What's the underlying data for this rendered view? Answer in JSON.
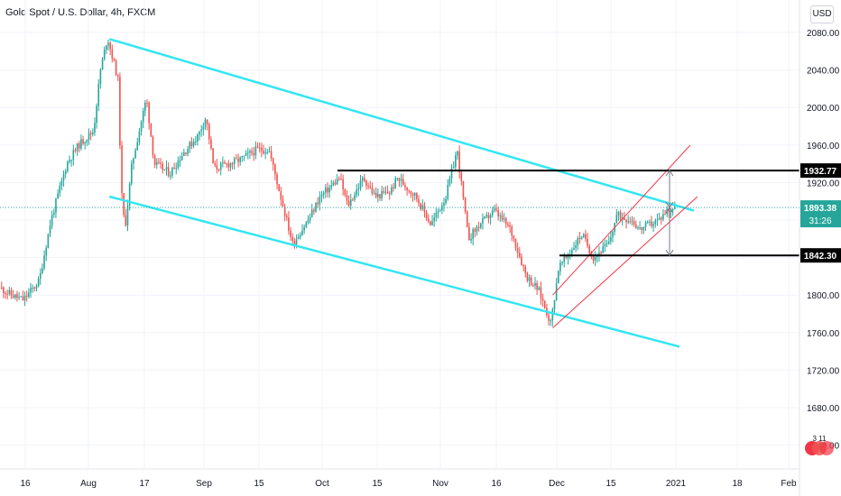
{
  "header": {
    "title": "Gold Spot / U.S. Dollar, 4h, FXCM",
    "currency_button": "USD"
  },
  "price_axis": {
    "ticks": [
      "2080.00",
      "2040.00",
      "2000.00",
      "1960.00",
      "1920.00",
      "1880.00",
      "1840.00",
      "1800.00",
      "1760.00",
      "1720.00",
      "1680.00",
      "1640.00"
    ]
  },
  "time_axis": {
    "labels": [
      "16",
      "Aug",
      "17",
      "Sep",
      "15",
      "Oct",
      "15",
      "Nov",
      "16",
      "Dec",
      "15",
      "2021",
      "18",
      "Feb"
    ]
  },
  "price_labels": {
    "resistance": "1932.77",
    "current": "1893.38",
    "countdown": "31:26",
    "support": "1842.30"
  },
  "badge": {
    "text": "3 11"
  },
  "colors": {
    "bull": "#26a69a",
    "bear": "#ef5350",
    "channel": "#33e6f2",
    "rising_channel": "#f23645",
    "hline": "#000000",
    "current_price": "#26a69a"
  },
  "chart_data": {
    "type": "candlestick",
    "symbol": "Gold Spot / U.S. Dollar",
    "interval": "4h",
    "source": "FXCM",
    "ylim": [
      1605,
      2100
    ],
    "y_ticks": [
      1640,
      1680,
      1720,
      1760,
      1800,
      1840,
      1880,
      1920,
      1960,
      2000,
      2040,
      2080
    ],
    "x_labels": [
      "16",
      "Aug",
      "17",
      "Sep",
      "15",
      "Oct",
      "15",
      "Nov",
      "16",
      "Dec",
      "15",
      "2021",
      "18",
      "Feb"
    ],
    "price_path": [
      [
        "Jul 10",
        1808
      ],
      [
        "Jul 13",
        1800
      ],
      [
        "Jul 16",
        1795
      ],
      [
        "Jul 20",
        1815
      ],
      [
        "Jul 23",
        1880
      ],
      [
        "Jul 27",
        1940
      ],
      [
        "Jul 30",
        1960
      ],
      [
        "Aug 3",
        1975
      ],
      [
        "Aug 5",
        2040
      ],
      [
        "Aug 7",
        2075
      ],
      [
        "Aug 10",
        2030
      ],
      [
        "Aug 11",
        1910
      ],
      [
        "Aug 12",
        1870
      ],
      [
        "Aug 14",
        1940
      ],
      [
        "Aug 18",
        2010
      ],
      [
        "Aug 20",
        1940
      ],
      [
        "Aug 24",
        1930
      ],
      [
        "Aug 27",
        1950
      ],
      [
        "Aug 31",
        1970
      ],
      [
        "Sep 2",
        1990
      ],
      [
        "Sep 4",
        1935
      ],
      [
        "Sep 8",
        1940
      ],
      [
        "Sep 11",
        1945
      ],
      [
        "Sep 15",
        1955
      ],
      [
        "Sep 18",
        1955
      ],
      [
        "Sep 21",
        1905
      ],
      [
        "Sep 24",
        1855
      ],
      [
        "Sep 28",
        1880
      ],
      [
        "Oct 1",
        1905
      ],
      [
        "Oct 6",
        1925
      ],
      [
        "Oct 8",
        1895
      ],
      [
        "Oct 12",
        1925
      ],
      [
        "Oct 15",
        1905
      ],
      [
        "Oct 19",
        1910
      ],
      [
        "Oct 21",
        1925
      ],
      [
        "Oct 26",
        1905
      ],
      [
        "Oct 30",
        1875
      ],
      [
        "Nov 3",
        1905
      ],
      [
        "Nov 6",
        1955
      ],
      [
        "Nov 9",
        1860
      ],
      [
        "Nov 12",
        1875
      ],
      [
        "Nov 16",
        1890
      ],
      [
        "Nov 20",
        1870
      ],
      [
        "Nov 24",
        1820
      ],
      [
        "Nov 27",
        1805
      ],
      [
        "Nov 30",
        1770
      ],
      [
        "Dec 2",
        1830
      ],
      [
        "Dec 4",
        1840
      ],
      [
        "Dec 8",
        1865
      ],
      [
        "Dec 11",
        1840
      ],
      [
        "Dec 15",
        1855
      ],
      [
        "Dec 17",
        1885
      ],
      [
        "Dec 21",
        1880
      ],
      [
        "Dec 23",
        1870
      ],
      [
        "Dec 28",
        1880
      ],
      [
        "Dec 30",
        1890
      ],
      [
        "Jan 1",
        1893.38
      ]
    ],
    "horizontal_lines": [
      {
        "price": 1932.77
      },
      {
        "price": 1842.3
      }
    ],
    "current_price": 1893.38,
    "countdown": "31:26",
    "trendlines": [
      {
        "name": "descending channel upper",
        "from": [
          "Aug 7",
          2073
        ],
        "to": [
          "Jan 6",
          1890
        ]
      },
      {
        "name": "descending channel lower",
        "from": [
          "Aug 7",
          1905
        ],
        "to": [
          "Jan 2",
          1745
        ]
      },
      {
        "name": "rising channel upper",
        "from": [
          "Nov 30",
          1800
        ],
        "to": [
          "Jan 5",
          1960
        ]
      },
      {
        "name": "rising channel lower",
        "from": [
          "Nov 30",
          1765
        ],
        "to": [
          "Jan 7",
          1905
        ]
      }
    ],
    "measure_arrows": [
      {
        "date": "Jan 1",
        "from": 1932.77,
        "to": 1893.38
      },
      {
        "date": "Jan 1",
        "from": 1893.38,
        "to": 1842.3
      }
    ]
  }
}
